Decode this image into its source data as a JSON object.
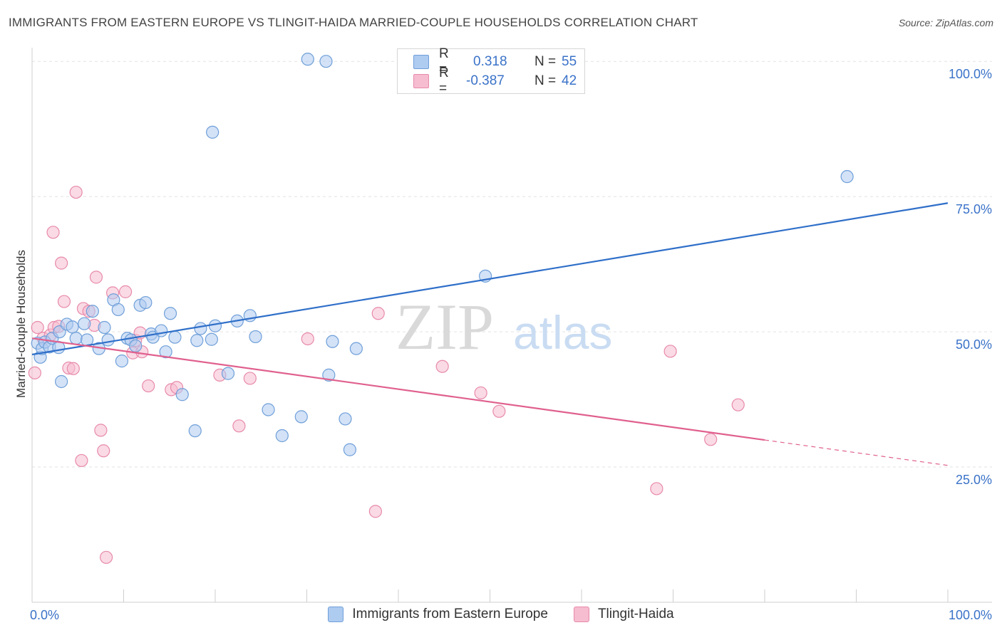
{
  "header": {
    "title": "IMMIGRANTS FROM EASTERN EUROPE VS TLINGIT-HAIDA MARRIED-COUPLE HOUSEHOLDS CORRELATION CHART",
    "source": "Source: ZipAtlas.com"
  },
  "legend": {
    "rows": [
      {
        "r_label": "R =",
        "r_value": "0.318",
        "n_label": "N =",
        "n_value": "55"
      },
      {
        "r_label": "R =",
        "r_value": "-0.387",
        "n_label": "N =",
        "n_value": "42"
      }
    ]
  },
  "watermark": {
    "zip": "ZIP",
    "atlas": "atlas"
  },
  "colors": {
    "blue_fill": "#aecbf0",
    "blue_stroke": "#6f9fd9",
    "blue_line": "#2f6fc9",
    "pink_fill": "#f6bcd0",
    "pink_stroke": "#e88aab",
    "pink_line": "#e0608e",
    "tick_label": "#3a72c8",
    "grid": "#e2e2e2"
  },
  "chart_data": {
    "type": "scatter",
    "title": "IMMIGRANTS FROM EASTERN EUROPE VS TLINGIT-HAIDA MARRIED-COUPLE HOUSEHOLDS CORRELATION CHART",
    "xlabel": "",
    "ylabel": "Married-couple Households",
    "xlim": [
      0,
      100
    ],
    "ylim": [
      0,
      102
    ],
    "x_tick_labels": [
      "0.0%",
      "100.0%"
    ],
    "y_ticks": [
      {
        "value": 100,
        "label": "100.0%"
      },
      {
        "value": 75,
        "label": "75.0%"
      },
      {
        "value": 50,
        "label": "50.0%"
      },
      {
        "value": 25,
        "label": "25.0%"
      }
    ],
    "series": [
      {
        "name": "Immigrants from Eastern Europe",
        "color": "blue",
        "r": 0.318,
        "n": 55,
        "trend": {
          "x0": 0,
          "y0": 45.8,
          "x1": 100,
          "y1": 73.8,
          "solid_to": 100
        },
        "points": [
          [
            0.6,
            47.9
          ],
          [
            0.9,
            45.3
          ],
          [
            1.1,
            46.9
          ],
          [
            1.4,
            48.1
          ],
          [
            1.9,
            47.2
          ],
          [
            2.2,
            48.8
          ],
          [
            2.9,
            47.1
          ],
          [
            3.0,
            50.0
          ],
          [
            3.2,
            40.8
          ],
          [
            3.8,
            51.4
          ],
          [
            4.4,
            50.9
          ],
          [
            4.8,
            48.8
          ],
          [
            5.7,
            51.5
          ],
          [
            6.0,
            48.5
          ],
          [
            6.6,
            53.8
          ],
          [
            7.3,
            46.9
          ],
          [
            7.9,
            50.8
          ],
          [
            8.3,
            48.5
          ],
          [
            8.9,
            55.9
          ],
          [
            9.4,
            54.1
          ],
          [
            9.8,
            44.6
          ],
          [
            10.4,
            48.8
          ],
          [
            10.8,
            48.5
          ],
          [
            11.3,
            47.4
          ],
          [
            11.8,
            54.9
          ],
          [
            12.4,
            55.4
          ],
          [
            13.0,
            49.6
          ],
          [
            13.2,
            49.0
          ],
          [
            14.1,
            50.2
          ],
          [
            14.6,
            46.3
          ],
          [
            15.1,
            53.4
          ],
          [
            15.6,
            49.0
          ],
          [
            16.4,
            38.4
          ],
          [
            17.8,
            31.7
          ],
          [
            18.0,
            48.4
          ],
          [
            18.4,
            50.6
          ],
          [
            19.6,
            48.6
          ],
          [
            20.0,
            51.1
          ],
          [
            21.4,
            42.3
          ],
          [
            22.4,
            52.0
          ],
          [
            23.8,
            53.0
          ],
          [
            24.4,
            49.1
          ],
          [
            25.8,
            35.6
          ],
          [
            27.3,
            30.8
          ],
          [
            29.4,
            34.3
          ],
          [
            32.1,
            100.0
          ],
          [
            32.4,
            42.0
          ],
          [
            32.8,
            48.2
          ],
          [
            34.2,
            33.9
          ],
          [
            34.7,
            28.2
          ],
          [
            35.4,
            46.9
          ],
          [
            49.5,
            60.3
          ],
          [
            19.7,
            86.9
          ],
          [
            30.1,
            100.4
          ],
          [
            89.0,
            78.7
          ]
        ]
      },
      {
        "name": "Tlingit-Haida",
        "color": "pink",
        "r": -0.387,
        "n": 42,
        "trend": {
          "x0": 0,
          "y0": 48.8,
          "x1": 100,
          "y1": 25.3,
          "solid_to": 80
        },
        "points": [
          [
            0.3,
            42.4
          ],
          [
            0.6,
            50.8
          ],
          [
            1.2,
            48.8
          ],
          [
            2.0,
            49.4
          ],
          [
            2.4,
            50.8
          ],
          [
            2.3,
            68.4
          ],
          [
            2.9,
            51.0
          ],
          [
            3.2,
            62.7
          ],
          [
            3.5,
            55.6
          ],
          [
            4.0,
            43.3
          ],
          [
            4.5,
            43.2
          ],
          [
            4.8,
            75.8
          ],
          [
            5.4,
            26.2
          ],
          [
            5.6,
            54.3
          ],
          [
            6.2,
            53.8
          ],
          [
            6.8,
            51.2
          ],
          [
            7.0,
            60.1
          ],
          [
            7.5,
            31.8
          ],
          [
            7.8,
            28.0
          ],
          [
            8.1,
            8.3
          ],
          [
            8.8,
            57.2
          ],
          [
            10.2,
            57.4
          ],
          [
            11.0,
            46.1
          ],
          [
            11.3,
            48.4
          ],
          [
            11.8,
            49.8
          ],
          [
            12.7,
            40.0
          ],
          [
            15.2,
            39.3
          ],
          [
            15.8,
            39.7
          ],
          [
            20.5,
            42.0
          ],
          [
            22.6,
            32.6
          ],
          [
            23.8,
            41.4
          ],
          [
            30.1,
            48.7
          ],
          [
            37.5,
            16.8
          ],
          [
            37.8,
            53.4
          ],
          [
            44.8,
            43.6
          ],
          [
            49.0,
            38.7
          ],
          [
            51.0,
            35.3
          ],
          [
            68.2,
            21.0
          ],
          [
            69.7,
            46.4
          ],
          [
            74.1,
            30.1
          ],
          [
            77.1,
            36.5
          ],
          [
            12.0,
            46.3
          ]
        ]
      }
    ]
  },
  "bottom_legend": {
    "items": [
      {
        "label": "Immigrants from Eastern Europe"
      },
      {
        "label": "Tlingit-Haida"
      }
    ]
  }
}
